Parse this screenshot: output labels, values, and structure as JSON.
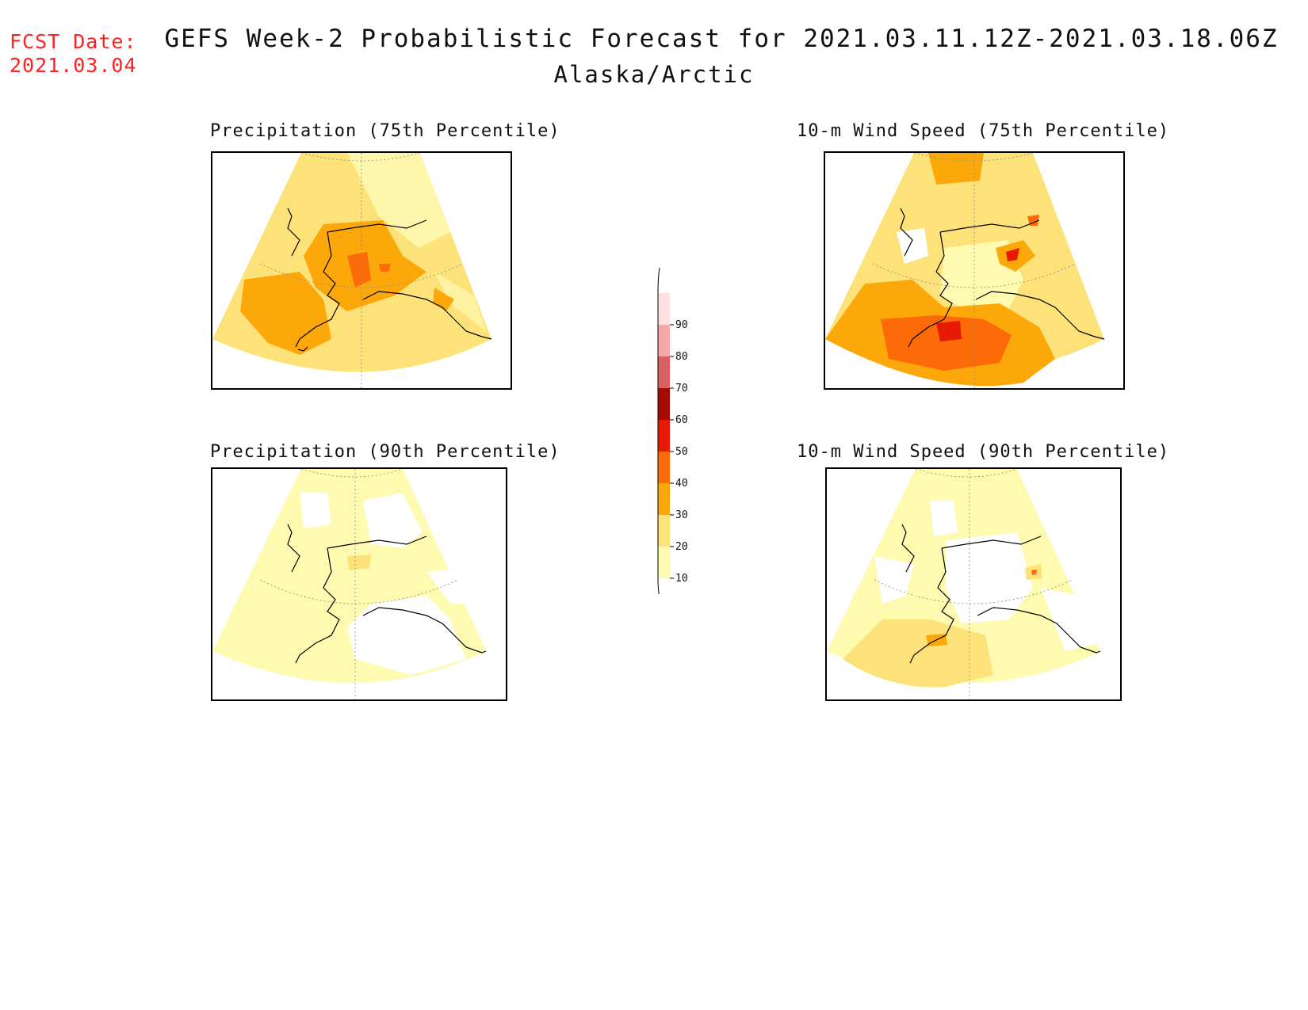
{
  "header": {
    "fcst_label": "FCST Date:",
    "fcst_date": "2021.03.04",
    "title": "GEFS Week-2 Probabilistic Forecast for 2021.03.11.12Z-2021.03.18.06Z",
    "region": "Alaska/Arctic"
  },
  "panels": [
    {
      "title": "Precipitation (75th Percentile)"
    },
    {
      "title": "10-m Wind Speed (75th Percentile)"
    },
    {
      "title": "Precipitation (90th Percentile)"
    },
    {
      "title": "10-m Wind Speed (90th Percentile)"
    }
  ],
  "colorbar": {
    "levels": [
      "10",
      "20",
      "30",
      "40",
      "50",
      "60",
      "70",
      "80",
      "90"
    ],
    "colors": [
      "#fefab0",
      "#fde27a",
      "#fca80a",
      "#fd6a08",
      "#e81a04",
      "#a60a04",
      "#d86060",
      "#f4a8a8",
      "#fde0e0"
    ]
  }
}
